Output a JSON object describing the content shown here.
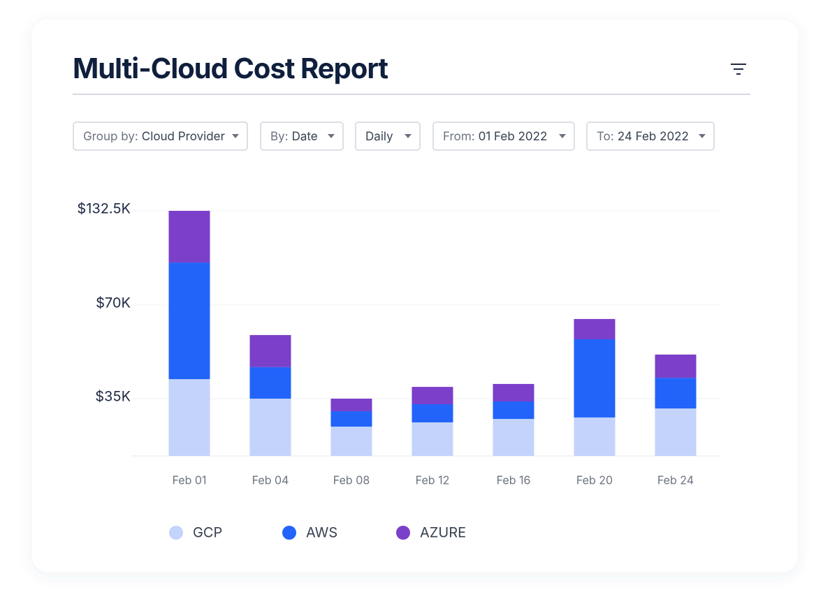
{
  "chart_data": {
    "type": "stacked_bar",
    "title": "Multi-Cloud Cost Report",
    "categories": [
      "Feb 01",
      "Feb 04",
      "Feb 08",
      "Feb 12",
      "Feb 16",
      "Feb 20",
      "Feb 24"
    ],
    "series": [
      {
        "name": "GCP",
        "color": "#c3d3fb",
        "values": [
          42300,
          35000,
          17900,
          20500,
          22600,
          23500,
          29000
        ]
      },
      {
        "name": "AWS",
        "color": "#2264fa",
        "values": [
          55900,
          11800,
          9400,
          11100,
          10700,
          33700,
          13800
        ]
      },
      {
        "name": "AZURE",
        "color": "#7b3fc9",
        "values": [
          34300,
          12000,
          7700,
          7800,
          7200,
          7600,
          8700
        ]
      }
    ],
    "ylim": [
      0,
      132500
    ],
    "yticks": [
      {
        "value": 35000,
        "label": "$35K"
      },
      {
        "value": 70000,
        "label": "$70K"
      },
      {
        "value": 132500,
        "label": "$132.5K"
      }
    ],
    "grid": true,
    "legend": "bottom"
  },
  "filters": [
    {
      "label": "Group by:",
      "value": "Cloud Provider"
    },
    {
      "label": "By:",
      "value": "Date"
    },
    {
      "value": "Daily"
    },
    {
      "label": "From:",
      "value": "01 Feb 2022"
    },
    {
      "label": "To:",
      "value": "24 Feb 2022"
    }
  ]
}
